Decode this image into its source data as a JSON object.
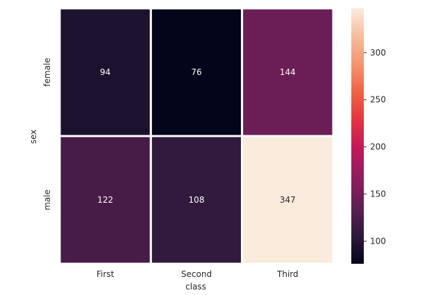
{
  "chart_data": {
    "type": "heatmap",
    "title": "",
    "xlabel": "class",
    "ylabel": "sex",
    "x_categories": [
      "First",
      "Second",
      "Third"
    ],
    "y_categories": [
      "female",
      "male"
    ],
    "values": [
      [
        94,
        76,
        144
      ],
      [
        122,
        108,
        347
      ]
    ],
    "colorbar": {
      "range": [
        76,
        347
      ],
      "ticks": [
        100,
        150,
        200,
        250,
        300
      ],
      "colormap": "rocket",
      "stops": [
        "#03051a",
        "#2e1a3c",
        "#5e1f52",
        "#8e1d5e",
        "#c0175c",
        "#e13342",
        "#f06043",
        "#f5936f",
        "#f6bc9c",
        "#faebdd"
      ]
    },
    "grid": false,
    "legend": "colorbar-right"
  }
}
